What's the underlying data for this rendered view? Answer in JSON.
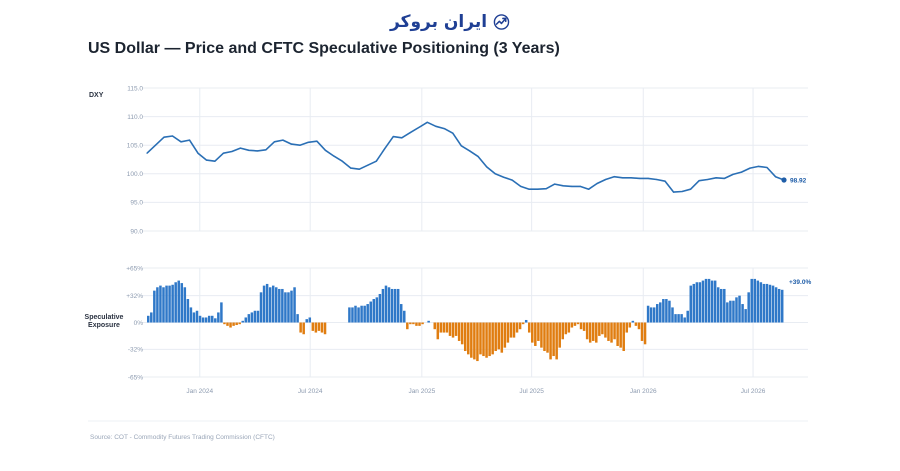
{
  "header": {
    "logo_text": "ایران بروکر",
    "logo_icon": "chart-trend-arrow-icon",
    "title": "US Dollar — Price and CFTC Speculative Positioning (3 Years)"
  },
  "footer": {
    "source": "Source: COT - Commodity Futures Trading Commission (CFTC)"
  },
  "colors": {
    "price_line": "#2a6fb5",
    "positive_bar": "#2f78c8",
    "negative_bar": "#e07d10",
    "grid": "#e8ecf2",
    "tick_text": "#8d9bb0"
  },
  "chart_data": [
    {
      "type": "line",
      "ylabel": "DXY",
      "ylim": [
        90,
        115
      ],
      "yticks": [
        "115.0",
        "110.0",
        "105.0",
        "100.0",
        "95.0",
        "90.0"
      ],
      "ytick_values": [
        115,
        110,
        105,
        100,
        95,
        90
      ],
      "last_value_label": "98.92",
      "grid": true,
      "x": [
        "2023-10-06",
        "2023-10-20",
        "2023-11-03",
        "2023-11-17",
        "2023-12-01",
        "2023-12-15",
        "2023-12-29",
        "2024-01-12",
        "2024-01-26",
        "2024-02-09",
        "2024-02-23",
        "2024-03-08",
        "2024-03-22",
        "2024-04-05",
        "2024-04-19",
        "2024-05-03",
        "2024-05-17",
        "2024-05-31",
        "2024-06-14",
        "2024-06-28",
        "2024-07-12",
        "2024-07-26",
        "2024-08-09",
        "2024-08-23",
        "2024-09-06",
        "2024-09-20",
        "2024-10-04",
        "2024-10-18",
        "2024-11-01",
        "2024-11-15",
        "2024-11-29",
        "2024-12-13",
        "2024-12-27",
        "2025-01-10",
        "2025-01-24",
        "2025-02-07",
        "2025-02-21",
        "2025-03-07",
        "2025-03-21",
        "2025-04-04",
        "2025-04-18",
        "2025-05-02",
        "2025-05-16",
        "2025-05-30",
        "2025-06-13",
        "2025-06-27",
        "2025-07-11",
        "2025-07-25",
        "2025-08-08",
        "2025-08-22",
        "2025-09-05",
        "2025-09-19",
        "2025-10-03",
        "2025-10-17",
        "2025-10-31",
        "2025-11-14",
        "2025-11-28",
        "2025-12-12",
        "2025-12-26",
        "2026-01-09",
        "2026-01-23",
        "2026-02-06",
        "2026-02-20",
        "2026-03-06",
        "2026-03-20",
        "2026-04-03",
        "2026-04-17",
        "2026-05-01",
        "2026-05-15",
        "2026-05-29",
        "2026-06-12",
        "2026-06-26",
        "2026-07-10",
        "2026-07-24",
        "2026-08-07",
        "2026-08-21"
      ],
      "values": [
        103.6,
        105.0,
        106.4,
        106.6,
        105.6,
        105.9,
        103.6,
        102.4,
        102.2,
        103.6,
        103.9,
        104.5,
        104.1,
        104.0,
        104.2,
        105.6,
        105.9,
        105.2,
        105.0,
        105.5,
        105.7,
        104.1,
        103.1,
        102.2,
        101.0,
        100.8,
        101.5,
        102.2,
        104.4,
        106.5,
        106.3,
        107.2,
        108.1,
        109.0,
        108.3,
        107.9,
        107.1,
        104.9,
        104.0,
        103.0,
        101.2,
        100.0,
        99.4,
        98.9,
        97.8,
        97.3,
        97.3,
        97.4,
        98.2,
        97.9,
        97.8,
        97.8,
        97.3,
        98.3,
        99.0,
        99.5,
        99.3,
        99.3,
        99.2,
        99.2,
        99.0,
        98.7,
        96.8,
        96.9,
        97.3,
        98.8,
        99.0,
        99.3,
        99.2,
        99.9,
        100.3,
        101.0,
        101.3,
        101.1,
        99.5,
        98.92
      ]
    },
    {
      "type": "bar",
      "ylabel": "Speculative Exposure",
      "ylim": [
        -65,
        65
      ],
      "yticks": [
        "+65%",
        "+32%",
        "0%",
        "-32%",
        "-65%"
      ],
      "ytick_values": [
        65,
        32,
        0,
        -32,
        -65
      ],
      "last_value_label": "+39.0%",
      "xticks": [
        "Jan 2024",
        "Jul 2024",
        "Jan 2025",
        "Jul 2025",
        "Jan 2026",
        "Jul 2026"
      ],
      "xtick_dates": [
        "2024-01-01",
        "2024-07-01",
        "2025-01-01",
        "2025-07-01",
        "2026-01-01",
        "2026-07-01"
      ],
      "x_start": "2023-10-06",
      "x_end": "2026-08-21",
      "values": [
        8,
        12,
        38,
        42,
        44,
        42,
        44,
        44,
        45,
        48,
        50,
        47,
        42,
        28,
        18,
        12,
        14,
        8,
        6,
        6,
        8,
        8,
        5,
        12,
        24,
        -2,
        -4,
        -6,
        -4,
        -3,
        -2,
        2,
        6,
        10,
        12,
        14,
        14,
        36,
        44,
        46,
        42,
        44,
        42,
        40,
        40,
        36,
        36,
        38,
        42,
        10,
        -12,
        -14,
        4,
        6,
        -10,
        -12,
        -10,
        -12,
        -14,
        0,
        0,
        0,
        0,
        0,
        0,
        0,
        18,
        18,
        20,
        18,
        20,
        20,
        22,
        25,
        28,
        30,
        34,
        40,
        44,
        42,
        40,
        40,
        40,
        22,
        14,
        -8,
        -2,
        -2,
        -4,
        -4,
        -2,
        0,
        2,
        0,
        -8,
        -20,
        -12,
        -12,
        -12,
        -16,
        -18,
        -16,
        -22,
        -26,
        -34,
        -38,
        -42,
        -44,
        -46,
        -38,
        -40,
        -42,
        -40,
        -38,
        -34,
        -32,
        -36,
        -30,
        -24,
        -18,
        -18,
        -12,
        -8,
        -2,
        3,
        -12,
        -24,
        -28,
        -22,
        -30,
        -34,
        -36,
        -44,
        -40,
        -44,
        -30,
        -20,
        -14,
        -12,
        -6,
        -4,
        -2,
        -8,
        -10,
        -20,
        -24,
        -22,
        -24,
        -16,
        -14,
        -18,
        -22,
        -24,
        -20,
        -28,
        -30,
        -34,
        -12,
        -6,
        2,
        -4,
        -8,
        -22,
        -26,
        20,
        18,
        18,
        22,
        24,
        28,
        28,
        26,
        18,
        10,
        10,
        10,
        6,
        14,
        44,
        46,
        48,
        48,
        50,
        52,
        52,
        50,
        50,
        42,
        40,
        40,
        24,
        26,
        26,
        30,
        32,
        22,
        16,
        36,
        52,
        52,
        50,
        48,
        46,
        46,
        45,
        44,
        42,
        40,
        39
      ]
    }
  ]
}
